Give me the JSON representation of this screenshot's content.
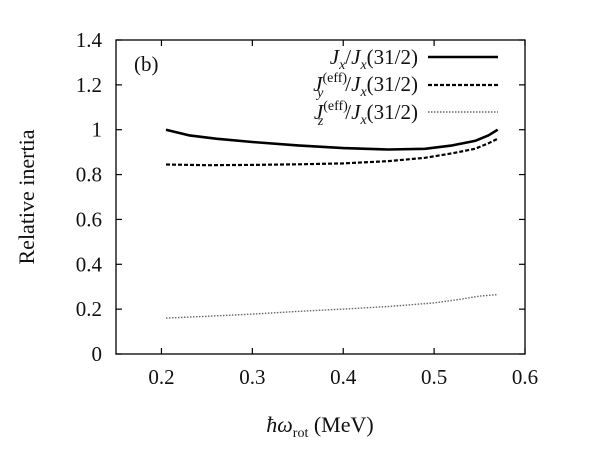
{
  "chart_data": {
    "type": "line",
    "panel_label": "(b)",
    "xlabel": {
      "main": "ħω",
      "sub": "rot",
      "unit": " (MeV)"
    },
    "ylabel": "Relative inertia",
    "xlim": [
      0.15,
      0.6
    ],
    "ylim": [
      0,
      1.4
    ],
    "x_ticks": [
      "0.2",
      "0.3",
      "0.4",
      "0.5",
      "0.6"
    ],
    "y_ticks": [
      "0",
      "0.2",
      "0.4",
      "0.6",
      "0.8",
      "1",
      "1.2",
      "1.4"
    ],
    "grid": false,
    "legend_position": "top-right",
    "series": [
      {
        "name": "Jx/Jx(31/2)",
        "style": "solid",
        "color": "#000000",
        "x": [
          0.205,
          0.23,
          0.26,
          0.3,
          0.35,
          0.4,
          0.45,
          0.49,
          0.52,
          0.545,
          0.56,
          0.57
        ],
        "y": [
          1.0,
          0.975,
          0.96,
          0.945,
          0.93,
          0.918,
          0.912,
          0.915,
          0.93,
          0.95,
          0.975,
          1.0
        ]
      },
      {
        "name": "Jy(eff)/Jx(31/2)",
        "style": "dashed",
        "color": "#000000",
        "x": [
          0.205,
          0.25,
          0.3,
          0.35,
          0.4,
          0.45,
          0.49,
          0.52,
          0.545,
          0.56,
          0.57
        ],
        "y": [
          0.845,
          0.842,
          0.843,
          0.846,
          0.85,
          0.86,
          0.875,
          0.895,
          0.915,
          0.94,
          0.96
        ]
      },
      {
        "name": "Jz(eff)/Jx(31/2)",
        "style": "dotted",
        "color": "#666666",
        "x": [
          0.205,
          0.25,
          0.3,
          0.35,
          0.4,
          0.45,
          0.5,
          0.53,
          0.55,
          0.57
        ],
        "y": [
          0.16,
          0.168,
          0.178,
          0.19,
          0.2,
          0.212,
          0.228,
          0.245,
          0.258,
          0.265
        ]
      }
    ]
  }
}
